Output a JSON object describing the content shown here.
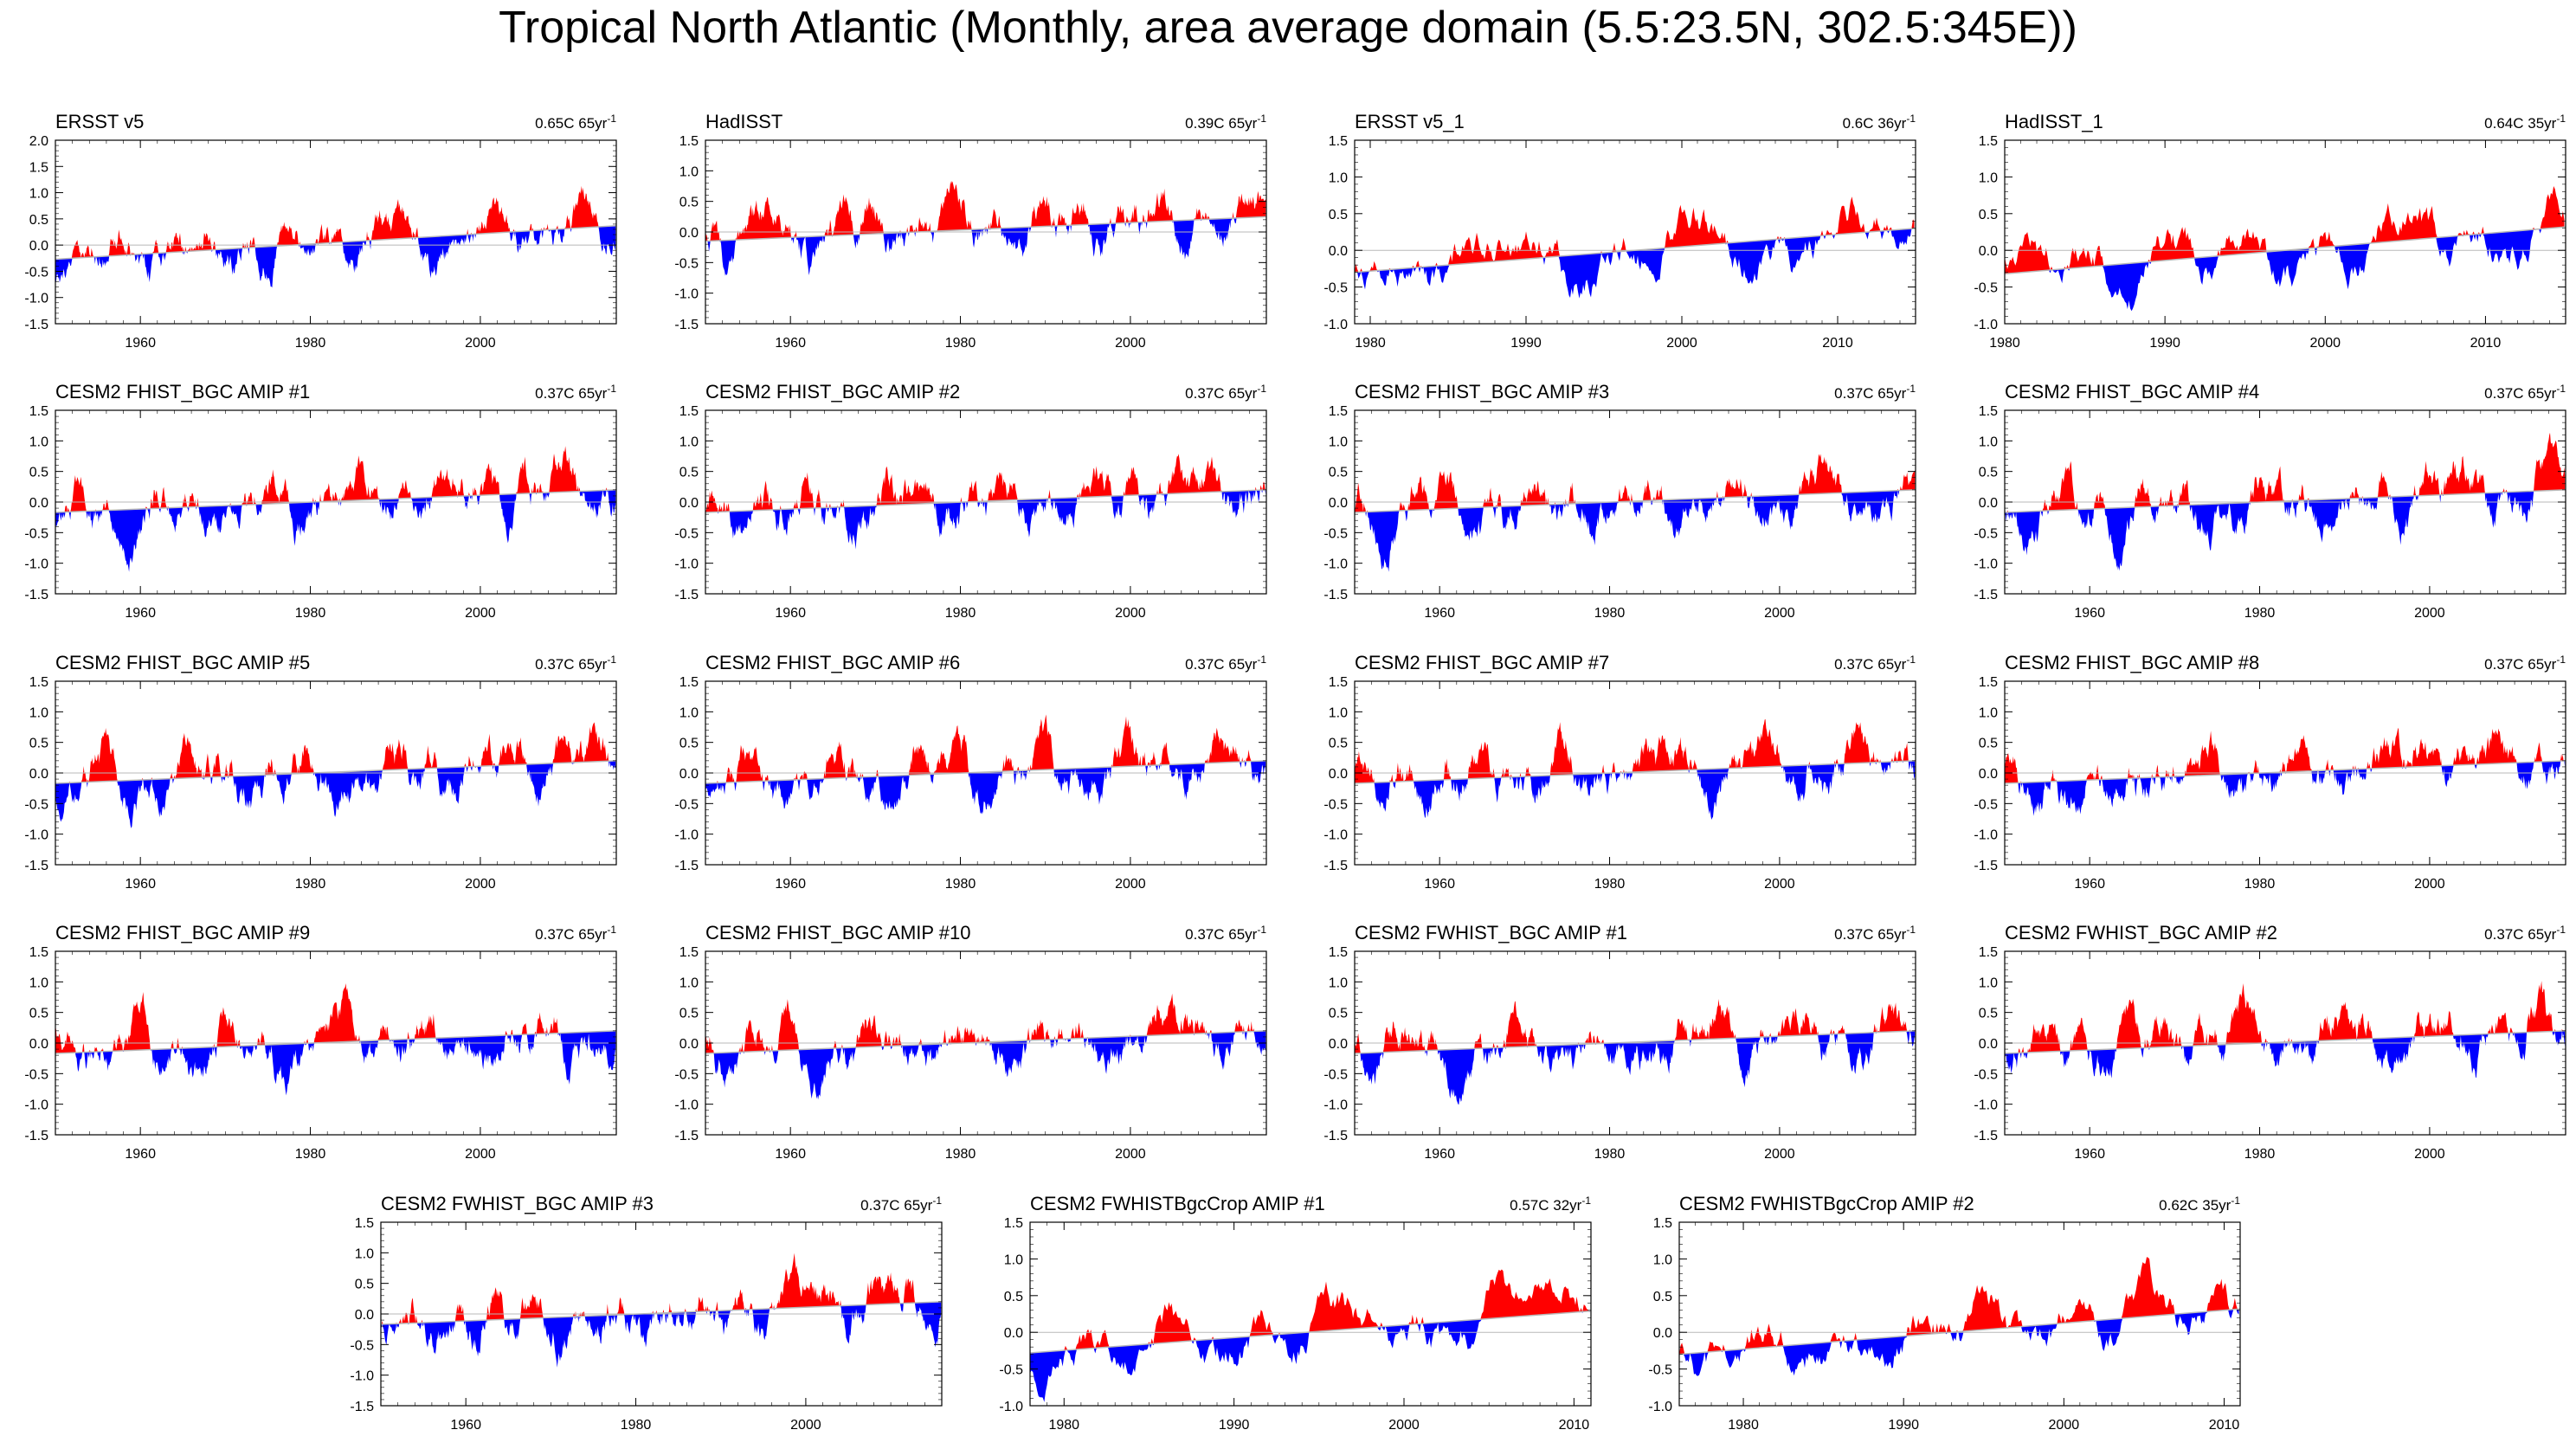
{
  "page": {
    "title": "Tropical North Atlantic (Monthly, area average domain (5.5:23.5N, 302.5:345E))"
  },
  "colors": {
    "positive": "#ff0000",
    "negative": "#0000ff",
    "trend": "#b8b8b8",
    "axis": "#000000"
  },
  "chart_data": [
    {
      "type": "area",
      "title": "ERSST v5",
      "trend_label": "0.65C 65yr",
      "trend_unit_sup": "-1",
      "xlim": [
        1950,
        2016
      ],
      "xticks": [
        1960,
        1980,
        2000
      ],
      "ylim": [
        -1.5,
        2.0
      ],
      "yticks": [
        -1.5,
        -1.0,
        -0.5,
        0.0,
        0.5,
        1.0,
        1.5,
        2.0
      ],
      "trend_start": -0.27,
      "trend_end": 0.37,
      "noise_seed": 11,
      "noise_scale": 1.05
    },
    {
      "type": "area",
      "title": "HadISST",
      "trend_label": "0.39C 65yr",
      "trend_unit_sup": "-1",
      "xlim": [
        1950,
        2016
      ],
      "xticks": [
        1960,
        1980,
        2000
      ],
      "ylim": [
        -1.5,
        1.5
      ],
      "yticks": [
        -1.5,
        -1.0,
        -0.5,
        0.0,
        0.5,
        1.0,
        1.5
      ],
      "trend_start": -0.15,
      "trend_end": 0.25,
      "noise_seed": 23,
      "noise_scale": 1.0
    },
    {
      "type": "area",
      "title": "ERSST v5_1",
      "trend_label": "0.6C 36yr",
      "trend_unit_sup": "-1",
      "xlim": [
        1979,
        2015
      ],
      "xticks": [
        1980,
        1990,
        2000,
        2010
      ],
      "ylim": [
        -1.0,
        1.5
      ],
      "yticks": [
        -1.0,
        -0.5,
        0.0,
        0.5,
        1.0,
        1.5
      ],
      "trend_start": -0.3,
      "trend_end": 0.3,
      "noise_seed": 37,
      "noise_scale": 0.95
    },
    {
      "type": "area",
      "title": "HadISST_1",
      "trend_label": "0.64C 35yr",
      "trend_unit_sup": "-1",
      "xlim": [
        1980,
        2015
      ],
      "xticks": [
        1980,
        1990,
        2000,
        2010
      ],
      "ylim": [
        -1.0,
        1.5
      ],
      "yticks": [
        -1.0,
        -0.5,
        0.0,
        0.5,
        1.0,
        1.5
      ],
      "trend_start": -0.32,
      "trend_end": 0.32,
      "noise_seed": 41,
      "noise_scale": 0.95
    },
    {
      "type": "area",
      "title": "CESM2 FHIST_BGC AMIP #1",
      "trend_label": "0.37C 65yr",
      "trend_unit_sup": "-1",
      "xlim": [
        1950,
        2016
      ],
      "xticks": [
        1960,
        1980,
        2000
      ],
      "ylim": [
        -1.5,
        1.5
      ],
      "yticks": [
        -1.5,
        -1.0,
        -0.5,
        0.0,
        0.5,
        1.0,
        1.5
      ],
      "trend_start": -0.17,
      "trend_end": 0.2,
      "noise_seed": 101,
      "noise_scale": 1.0
    },
    {
      "type": "area",
      "title": "CESM2 FHIST_BGC AMIP #2",
      "trend_label": "0.37C 65yr",
      "trend_unit_sup": "-1",
      "xlim": [
        1950,
        2016
      ],
      "xticks": [
        1960,
        1980,
        2000
      ],
      "ylim": [
        -1.5,
        1.5
      ],
      "yticks": [
        -1.5,
        -1.0,
        -0.5,
        0.0,
        0.5,
        1.0,
        1.5
      ],
      "trend_start": -0.17,
      "trend_end": 0.2,
      "noise_seed": 102,
      "noise_scale": 1.0
    },
    {
      "type": "area",
      "title": "CESM2 FHIST_BGC AMIP #3",
      "trend_label": "0.37C 65yr",
      "trend_unit_sup": "-1",
      "xlim": [
        1950,
        2016
      ],
      "xticks": [
        1960,
        1980,
        2000
      ],
      "ylim": [
        -1.5,
        1.5
      ],
      "yticks": [
        -1.5,
        -1.0,
        -0.5,
        0.0,
        0.5,
        1.0,
        1.5
      ],
      "trend_start": -0.17,
      "trend_end": 0.2,
      "noise_seed": 103,
      "noise_scale": 1.0
    },
    {
      "type": "area",
      "title": "CESM2 FHIST_BGC AMIP #4",
      "trend_label": "0.37C 65yr",
      "trend_unit_sup": "-1",
      "xlim": [
        1950,
        2016
      ],
      "xticks": [
        1960,
        1980,
        2000
      ],
      "ylim": [
        -1.5,
        1.5
      ],
      "yticks": [
        -1.5,
        -1.0,
        -0.5,
        0.0,
        0.5,
        1.0,
        1.5
      ],
      "trend_start": -0.17,
      "trend_end": 0.2,
      "noise_seed": 104,
      "noise_scale": 1.0
    },
    {
      "type": "area",
      "title": "CESM2 FHIST_BGC AMIP #5",
      "trend_label": "0.37C 65yr",
      "trend_unit_sup": "-1",
      "xlim": [
        1950,
        2016
      ],
      "xticks": [
        1960,
        1980,
        2000
      ],
      "ylim": [
        -1.5,
        1.5
      ],
      "yticks": [
        -1.5,
        -1.0,
        -0.5,
        0.0,
        0.5,
        1.0,
        1.5
      ],
      "trend_start": -0.17,
      "trend_end": 0.2,
      "noise_seed": 105,
      "noise_scale": 1.0
    },
    {
      "type": "area",
      "title": "CESM2 FHIST_BGC AMIP #6",
      "trend_label": "0.37C 65yr",
      "trend_unit_sup": "-1",
      "xlim": [
        1950,
        2016
      ],
      "xticks": [
        1960,
        1980,
        2000
      ],
      "ylim": [
        -1.5,
        1.5
      ],
      "yticks": [
        -1.5,
        -1.0,
        -0.5,
        0.0,
        0.5,
        1.0,
        1.5
      ],
      "trend_start": -0.17,
      "trend_end": 0.2,
      "noise_seed": 106,
      "noise_scale": 1.0
    },
    {
      "type": "area",
      "title": "CESM2 FHIST_BGC AMIP #7",
      "trend_label": "0.37C 65yr",
      "trend_unit_sup": "-1",
      "xlim": [
        1950,
        2016
      ],
      "xticks": [
        1960,
        1980,
        2000
      ],
      "ylim": [
        -1.5,
        1.5
      ],
      "yticks": [
        -1.5,
        -1.0,
        -0.5,
        0.0,
        0.5,
        1.0,
        1.5
      ],
      "trend_start": -0.17,
      "trend_end": 0.2,
      "noise_seed": 107,
      "noise_scale": 1.0
    },
    {
      "type": "area",
      "title": "CESM2 FHIST_BGC AMIP #8",
      "trend_label": "0.37C 65yr",
      "trend_unit_sup": "-1",
      "xlim": [
        1950,
        2016
      ],
      "xticks": [
        1960,
        1980,
        2000
      ],
      "ylim": [
        -1.5,
        1.5
      ],
      "yticks": [
        -1.5,
        -1.0,
        -0.5,
        0.0,
        0.5,
        1.0,
        1.5
      ],
      "trend_start": -0.17,
      "trend_end": 0.2,
      "noise_seed": 108,
      "noise_scale": 1.0
    },
    {
      "type": "area",
      "title": "CESM2 FHIST_BGC AMIP #9",
      "trend_label": "0.37C 65yr",
      "trend_unit_sup": "-1",
      "xlim": [
        1950,
        2016
      ],
      "xticks": [
        1960,
        1980,
        2000
      ],
      "ylim": [
        -1.5,
        1.5
      ],
      "yticks": [
        -1.5,
        -1.0,
        -0.5,
        0.0,
        0.5,
        1.0,
        1.5
      ],
      "trend_start": -0.17,
      "trend_end": 0.2,
      "noise_seed": 109,
      "noise_scale": 1.0
    },
    {
      "type": "area",
      "title": "CESM2 FHIST_BGC AMIP #10",
      "trend_label": "0.37C 65yr",
      "trend_unit_sup": "-1",
      "xlim": [
        1950,
        2016
      ],
      "xticks": [
        1960,
        1980,
        2000
      ],
      "ylim": [
        -1.5,
        1.5
      ],
      "yticks": [
        -1.5,
        -1.0,
        -0.5,
        0.0,
        0.5,
        1.0,
        1.5
      ],
      "trend_start": -0.17,
      "trend_end": 0.2,
      "noise_seed": 110,
      "noise_scale": 1.0
    },
    {
      "type": "area",
      "title": "CESM2 FWHIST_BGC AMIP #1",
      "trend_label": "0.37C 65yr",
      "trend_unit_sup": "-1",
      "xlim": [
        1950,
        2016
      ],
      "xticks": [
        1960,
        1980,
        2000
      ],
      "ylim": [
        -1.5,
        1.5
      ],
      "yticks": [
        -1.5,
        -1.0,
        -0.5,
        0.0,
        0.5,
        1.0,
        1.5
      ],
      "trend_start": -0.17,
      "trend_end": 0.2,
      "noise_seed": 111,
      "noise_scale": 1.0
    },
    {
      "type": "area",
      "title": "CESM2 FWHIST_BGC AMIP #2",
      "trend_label": "0.37C 65yr",
      "trend_unit_sup": "-1",
      "xlim": [
        1950,
        2016
      ],
      "xticks": [
        1960,
        1980,
        2000
      ],
      "ylim": [
        -1.5,
        1.5
      ],
      "yticks": [
        -1.5,
        -1.0,
        -0.5,
        0.0,
        0.5,
        1.0,
        1.5
      ],
      "trend_start": -0.17,
      "trend_end": 0.2,
      "noise_seed": 112,
      "noise_scale": 1.0
    },
    {
      "type": "area",
      "title": "CESM2 FWHIST_BGC AMIP #3",
      "trend_label": "0.37C 65yr",
      "trend_unit_sup": "-1",
      "xlim": [
        1950,
        2016
      ],
      "xticks": [
        1960,
        1980,
        2000
      ],
      "ylim": [
        -1.5,
        1.5
      ],
      "yticks": [
        -1.5,
        -1.0,
        -0.5,
        0.0,
        0.5,
        1.0,
        1.5
      ],
      "trend_start": -0.17,
      "trend_end": 0.2,
      "noise_seed": 113,
      "noise_scale": 1.0
    },
    {
      "type": "area",
      "title": "CESM2 FWHISTBgcCrop AMIP #1",
      "trend_label": "0.57C 32yr",
      "trend_unit_sup": "-1",
      "xlim": [
        1978,
        2011
      ],
      "xticks": [
        1980,
        1990,
        2000,
        2010
      ],
      "ylim": [
        -1.0,
        1.5
      ],
      "yticks": [
        -1.0,
        -0.5,
        0.0,
        0.5,
        1.0,
        1.5
      ],
      "trend_start": -0.28,
      "trend_end": 0.29,
      "noise_seed": 121,
      "noise_scale": 0.95
    },
    {
      "type": "area",
      "title": "CESM2 FWHISTBgcCrop AMIP #2",
      "trend_label": "0.62C 35yr",
      "trend_unit_sup": "-1",
      "xlim": [
        1976,
        2011
      ],
      "xticks": [
        1980,
        1990,
        2000,
        2010
      ],
      "ylim": [
        -1.0,
        1.5
      ],
      "yticks": [
        -1.0,
        -0.5,
        0.0,
        0.5,
        1.0,
        1.5
      ],
      "trend_start": -0.3,
      "trend_end": 0.32,
      "noise_seed": 122,
      "noise_scale": 0.95
    }
  ]
}
